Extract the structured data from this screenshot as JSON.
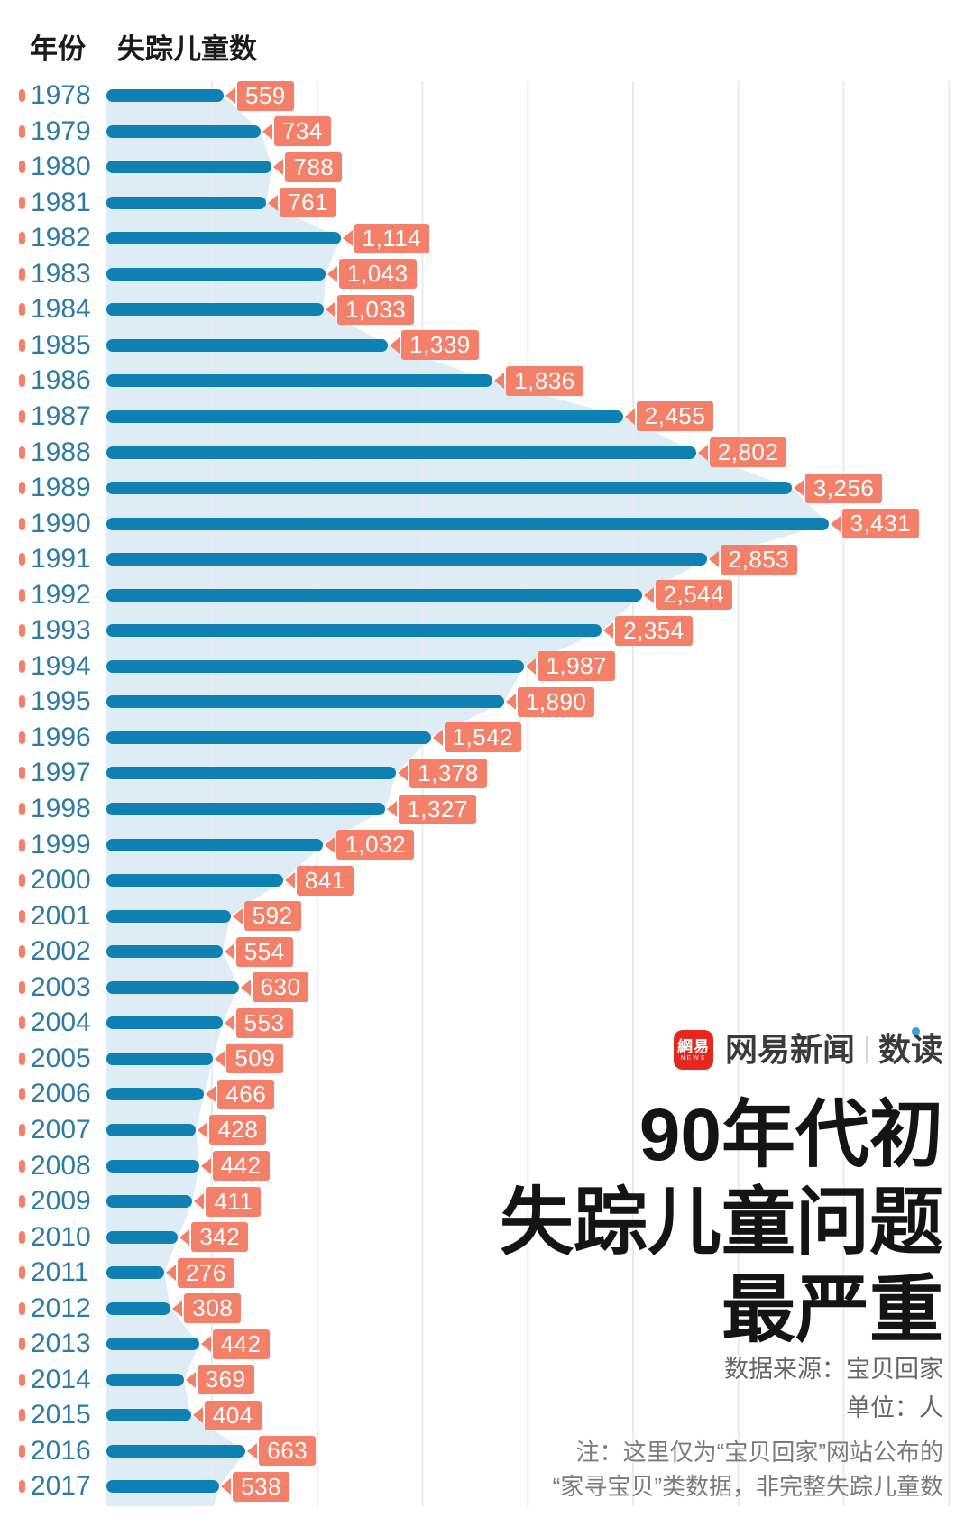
{
  "header": {
    "year_label": "年份",
    "value_label": "失踪儿童数"
  },
  "chart_data": {
    "type": "bar",
    "orientation": "horizontal",
    "title": "90年代初失踪儿童问题最严重",
    "unit": "人",
    "categories": [
      "1978",
      "1979",
      "1980",
      "1981",
      "1982",
      "1983",
      "1984",
      "1985",
      "1986",
      "1987",
      "1988",
      "1989",
      "1990",
      "1991",
      "1992",
      "1993",
      "1994",
      "1995",
      "1996",
      "1997",
      "1998",
      "1999",
      "2000",
      "2001",
      "2002",
      "2003",
      "2004",
      "2005",
      "2006",
      "2007",
      "2008",
      "2009",
      "2010",
      "2011",
      "2012",
      "2013",
      "2014",
      "2015",
      "2016",
      "2017"
    ],
    "values": [
      559,
      734,
      788,
      761,
      1114,
      1043,
      1033,
      1339,
      1836,
      2455,
      2802,
      3256,
      3431,
      2853,
      2544,
      2354,
      1987,
      1890,
      1542,
      1378,
      1327,
      1032,
      841,
      592,
      554,
      630,
      553,
      509,
      466,
      428,
      442,
      411,
      342,
      276,
      308,
      442,
      369,
      404,
      663,
      538
    ],
    "labels": [
      "559",
      "734",
      "788",
      "761",
      "1,114",
      "1,043",
      "1,033",
      "1,339",
      "1,836",
      "2,455",
      "2,802",
      "3,256",
      "3,431",
      "2,853",
      "2,544",
      "2,354",
      "1,987",
      "1,890",
      "1,542",
      "1,378",
      "1,327",
      "1,032",
      "841",
      "592",
      "554",
      "630",
      "553",
      "509",
      "466",
      "428",
      "442",
      "411",
      "342",
      "276",
      "308",
      "442",
      "369",
      "404",
      "663",
      "538"
    ],
    "x_axis": {
      "gridline_interval": 500,
      "gridline_values": [
        500,
        1000,
        1500,
        2000,
        2500,
        3000,
        3500,
        4000
      ],
      "ticks_visible": false
    },
    "legend": "none",
    "grid": "vertical",
    "colors": {
      "bar": "#0e80b2",
      "area_silhouette": "#ddecf5",
      "value_pill": "#f5806a",
      "row_tick": "#f5806a",
      "year_text": "#2e7ca6",
      "gridline": "#ebebeb"
    }
  },
  "branding": {
    "badge_cn": "網易",
    "badge_en": "NEWS",
    "site_name": "网易新闻",
    "section_name": "数读",
    "badge_color": "#e5271d",
    "dot_color": "#3aa0dc"
  },
  "title": {
    "lines": [
      "90年代初",
      "失踪儿童问题",
      "最严重"
    ]
  },
  "meta": {
    "source": "数据来源：宝贝回家",
    "unit": "单位：人",
    "note_lines": [
      "注：这里仅为“宝贝回家”网站公布的",
      "“家寻宝贝”类数据，非完整失踪儿童数"
    ]
  }
}
